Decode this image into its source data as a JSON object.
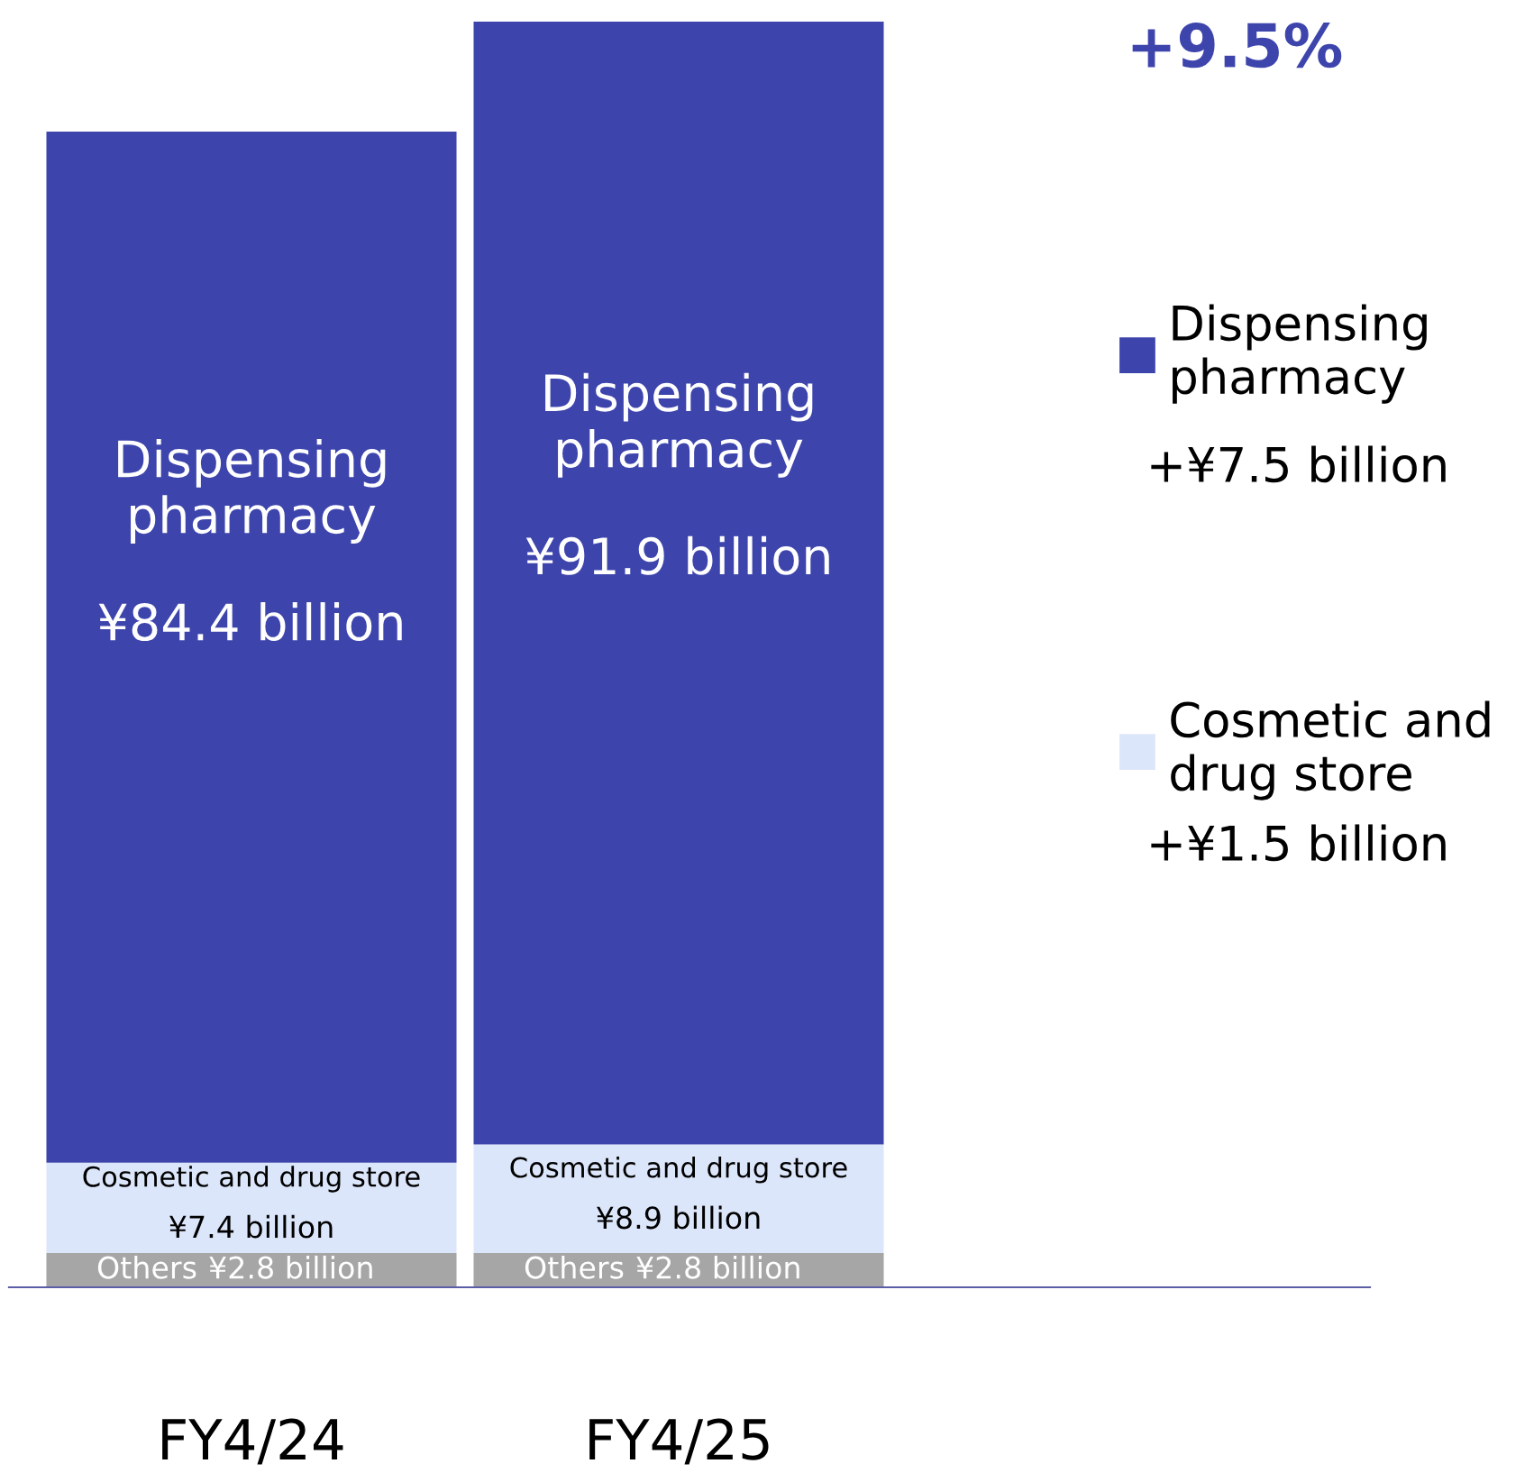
{
  "chart_data": {
    "type": "bar",
    "stacked": true,
    "categories": [
      "FY4/24",
      "FY4/25"
    ],
    "series": [
      {
        "name": "Others",
        "color": "#a6a6a6",
        "values": [
          2.8,
          2.8
        ],
        "value_labels": [
          "¥2.8 billion",
          "¥2.8 billion"
        ]
      },
      {
        "name": "Cosmetic and drug store",
        "color": "#dce6fa",
        "values": [
          7.4,
          8.9
        ],
        "value_labels": [
          "¥7.4 billion",
          "¥8.9 billion"
        ]
      },
      {
        "name": "Dispensing pharmacy",
        "color": "#3d45ad",
        "values": [
          84.4,
          91.9
        ],
        "value_labels": [
          "¥84.4 billion",
          "¥91.9 billion"
        ]
      }
    ],
    "annotations": [
      "+9.5%",
      "+¥7.5 billion",
      "+¥1.5 billion"
    ],
    "legend": "right",
    "grid": false
  }
}
